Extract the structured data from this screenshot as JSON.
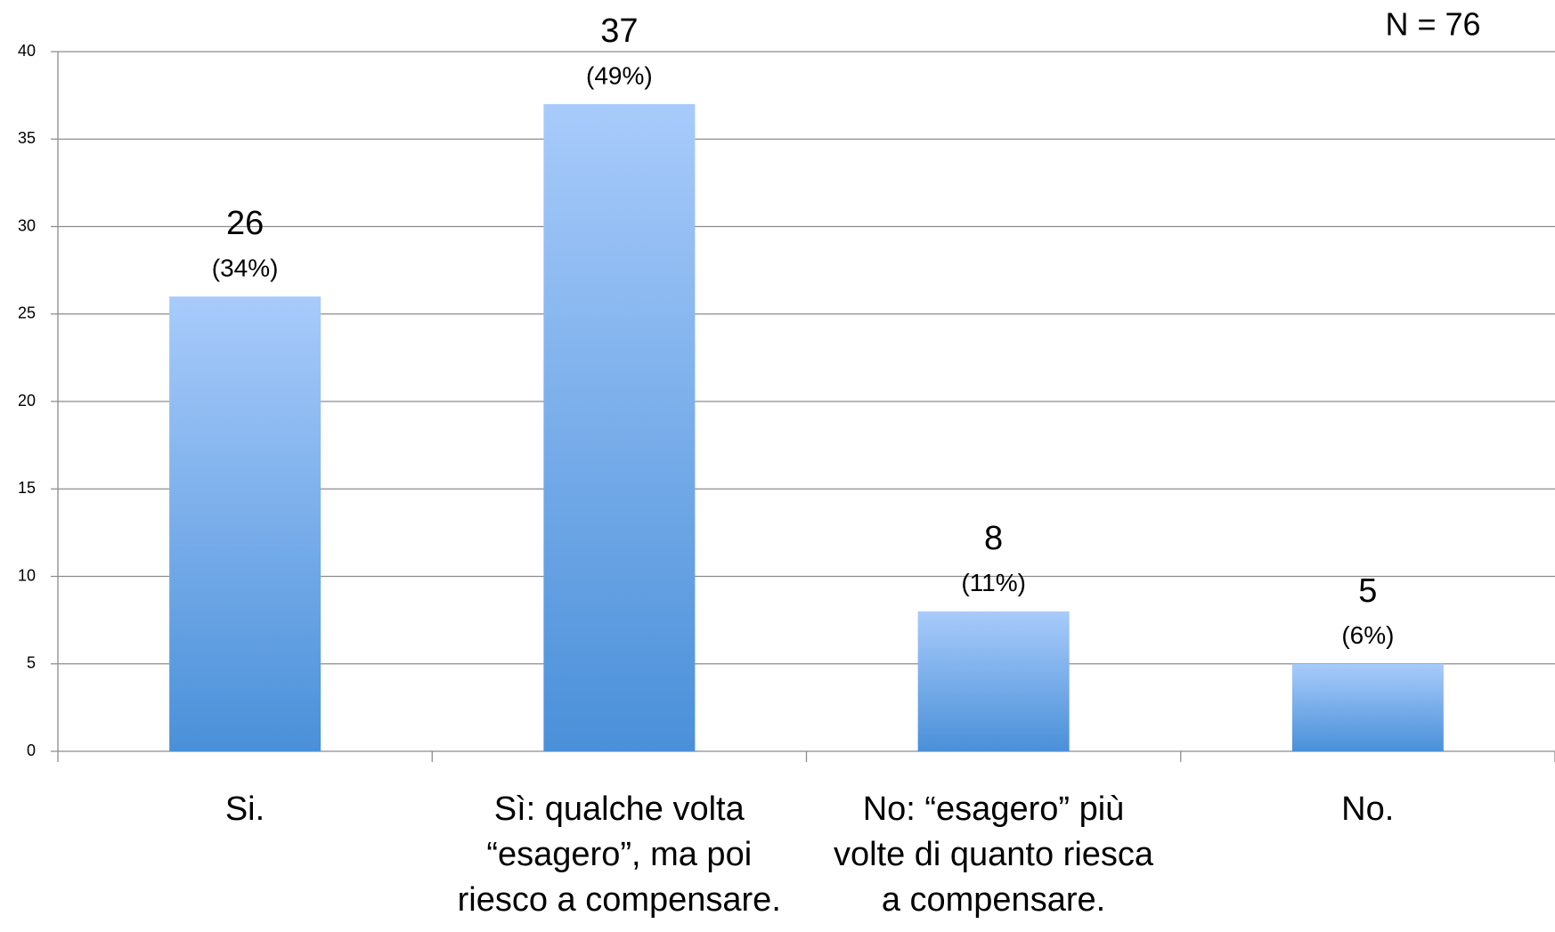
{
  "chart_data": {
    "type": "bar",
    "annotation": "N = 76",
    "categories": [
      "Si.",
      "Sì: qualche volta\n“esagero”, ma poi\nriesco a compensare.",
      "No: “esagero” più\nvolte di quanto riesca\na compensare.",
      "No."
    ],
    "values": [
      26,
      37,
      8,
      5
    ],
    "percent_labels": [
      "(34%)",
      "(49%)",
      "(11%)",
      "(6%)"
    ],
    "color": [
      "#a8cbfb",
      "#4a90d9"
    ],
    "ylim": [
      0,
      40
    ],
    "yticks": [
      0,
      5,
      10,
      15,
      20,
      25,
      30,
      35,
      40
    ],
    "grid": true
  }
}
